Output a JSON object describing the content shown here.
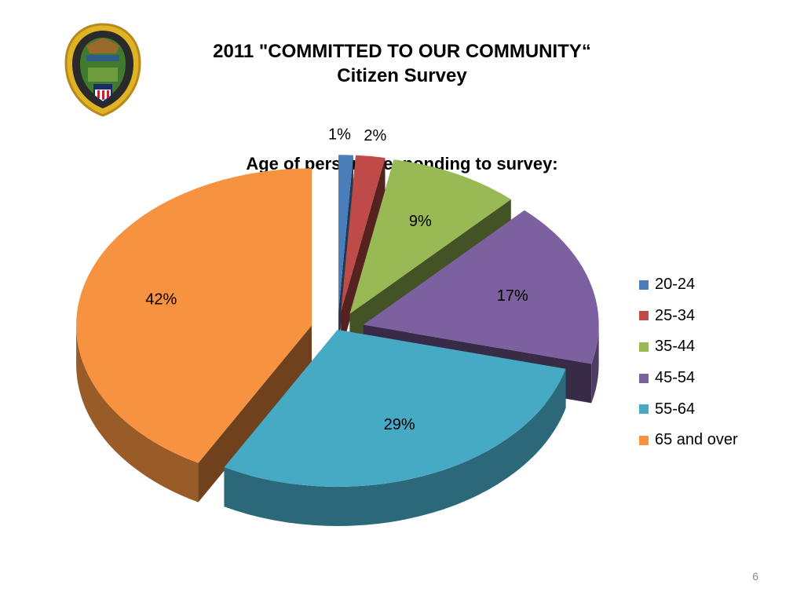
{
  "slide": {
    "title_line1": "2011 \"COMMITTED TO OUR COMMUNITY“",
    "title_line2": "Citizen Survey",
    "page_number": "6"
  },
  "chart_data": {
    "type": "pie",
    "title": "Age of persons responding to survey:",
    "style": "3d-exploded",
    "legend_position": "right",
    "slices": [
      {
        "label": "20-24",
        "value": 1,
        "display": "1%",
        "color": "#4A7EBB"
      },
      {
        "label": "25-34",
        "value": 2,
        "display": "2%",
        "color": "#BE4B48"
      },
      {
        "label": "35-44",
        "value": 9,
        "display": "9%",
        "color": "#98B954"
      },
      {
        "label": "45-54",
        "value": 17,
        "display": "17%",
        "color": "#7D60A0"
      },
      {
        "label": "55-64",
        "value": 29,
        "display": "29%",
        "color": "#46AAC5"
      },
      {
        "label": "65 and over",
        "value": 42,
        "display": "42%",
        "color": "#F69240"
      }
    ]
  }
}
